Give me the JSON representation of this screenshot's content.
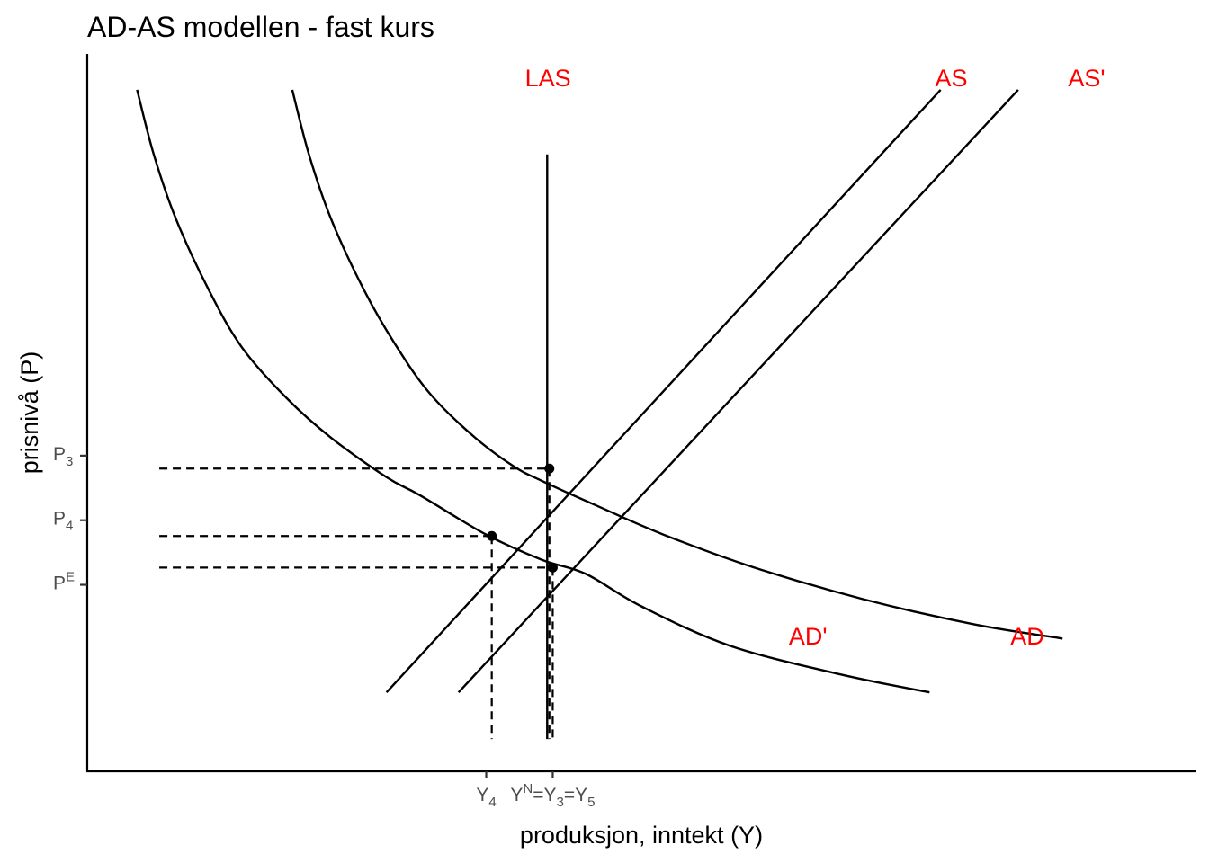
{
  "chart_data": {
    "type": "line",
    "title": "AD-AS modellen - fast kurs",
    "xlabel": "produksjon, inntekt (Y)",
    "ylabel": "prisnivå (P)",
    "xlim": [
      0,
      100
    ],
    "ylim": [
      0,
      100
    ],
    "grid": false,
    "label_color": "#ff0000",
    "curve_color": "#000000",
    "x_ticks": [
      {
        "value": 36,
        "main": "Y",
        "sub": "4"
      },
      {
        "value": 42,
        "parts": [
          {
            "t": "Y"
          },
          {
            "t": "N",
            "sup": true
          },
          {
            "t": "=Y"
          },
          {
            "t": "3",
            "sub": true
          },
          {
            "t": "=Y"
          },
          {
            "t": "5",
            "sub": true
          }
        ]
      }
    ],
    "y_ticks": [
      {
        "value": 44,
        "main": "P",
        "sub": "3"
      },
      {
        "value": 35,
        "main": "P",
        "sub": "4"
      },
      {
        "value": 26,
        "main": "P",
        "sup": "E"
      }
    ],
    "series": [
      {
        "name": "AD",
        "kind": "curve",
        "points": [
          [
            18.5,
            95
          ],
          [
            20,
            86
          ],
          [
            22,
            77
          ],
          [
            25,
            67
          ],
          [
            28,
            59
          ],
          [
            31,
            52.5
          ],
          [
            35,
            46.5
          ],
          [
            38.5,
            42.5
          ],
          [
            41,
            40.5
          ],
          [
            46,
            37
          ],
          [
            52,
            33
          ],
          [
            60,
            28.5
          ],
          [
            70,
            24
          ],
          [
            80,
            20.5
          ],
          [
            88,
            18.5
          ]
        ],
        "label_at": [
          83.3,
          17.7
        ]
      },
      {
        "name": "AD'",
        "kind": "curve",
        "points": [
          [
            4.5,
            95
          ],
          [
            6,
            86
          ],
          [
            8,
            77
          ],
          [
            11,
            67
          ],
          [
            14,
            59
          ],
          [
            18,
            52
          ],
          [
            22,
            46.5
          ],
          [
            27,
            41
          ],
          [
            30,
            38.5
          ],
          [
            36,
            33
          ],
          [
            41,
            29.5
          ],
          [
            45,
            27.5
          ],
          [
            50,
            23
          ],
          [
            58,
            17.5
          ],
          [
            68,
            13.5
          ],
          [
            76,
            11
          ]
        ],
        "label_at": [
          63.3,
          17.7
        ]
      },
      {
        "name": "AS",
        "kind": "line",
        "points": [
          [
            27,
            11
          ],
          [
            77,
            95
          ]
        ],
        "label_at": [
          76.5,
          95.5
        ]
      },
      {
        "name": "AS'",
        "kind": "line",
        "points": [
          [
            33.5,
            11
          ],
          [
            84,
            95
          ]
        ],
        "label_at": [
          88.5,
          95.5
        ]
      },
      {
        "name": "LAS",
        "kind": "line",
        "points": [
          [
            41.5,
            4.5
          ],
          [
            41.5,
            86
          ]
        ],
        "label_at": [
          39.5,
          95.5
        ]
      }
    ],
    "equilibria": [
      {
        "point": [
          41.7,
          42.2
        ],
        "drop_to_x": true
      },
      {
        "point": [
          36.5,
          32.8
        ],
        "drop_to_x": true
      },
      {
        "point": [
          42.0,
          28.4
        ],
        "drop_to_x": true
      }
    ],
    "guides_from_x": 6.5,
    "guides_to_y": 4.5
  }
}
